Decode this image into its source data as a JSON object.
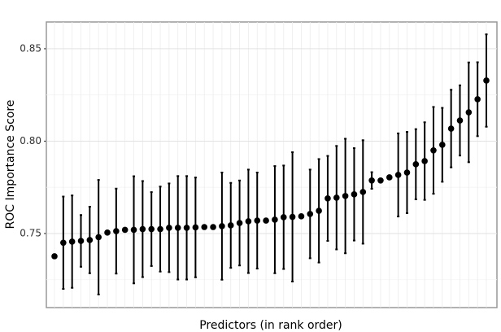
{
  "chart_data": {
    "type": "errorbar-dot",
    "x_label": "Predictors (in rank order)",
    "y_label": "ROC Importance Score",
    "categories": [
      null,
      null,
      null,
      null,
      null,
      null,
      null,
      null,
      null,
      null,
      null,
      null,
      null,
      null,
      null,
      null,
      null,
      null,
      null,
      null,
      null,
      null,
      null,
      null,
      null,
      null,
      null,
      null,
      null,
      null,
      null,
      null,
      null,
      null,
      null,
      null,
      null,
      null,
      null,
      null,
      null,
      null,
      null,
      null,
      null,
      null,
      null,
      null,
      null,
      null
    ],
    "values": [
      0.7377,
      0.745,
      0.7456,
      0.746,
      0.7465,
      0.748,
      0.7505,
      0.7513,
      0.752,
      0.752,
      0.7524,
      0.7524,
      0.7524,
      0.7531,
      0.7531,
      0.7531,
      0.7533,
      0.7535,
      0.7535,
      0.754,
      0.7544,
      0.7557,
      0.7566,
      0.757,
      0.757,
      0.7575,
      0.7588,
      0.759,
      0.7593,
      0.7606,
      0.7623,
      0.769,
      0.7694,
      0.7703,
      0.7712,
      0.7725,
      0.7787,
      0.7787,
      0.7804,
      0.7817,
      0.783,
      0.7875,
      0.7892,
      0.795,
      0.798,
      0.8068,
      0.8112,
      0.8156,
      0.8227,
      0.8328
    ],
    "errors": [
      null,
      0.025,
      0.025,
      0.014,
      0.018,
      0.031,
      null,
      0.023,
      null,
      0.029,
      0.026,
      0.02,
      0.023,
      0.024,
      0.028,
      0.028,
      0.027,
      null,
      null,
      0.029,
      0.023,
      0.023,
      0.028,
      0.026,
      null,
      0.029,
      0.028,
      0.035,
      null,
      0.024,
      0.028,
      0.023,
      0.028,
      0.031,
      0.025,
      0.028,
      0.0045,
      null,
      null,
      0.0225,
      0.022,
      0.019,
      0.021,
      0.0235,
      0.02,
      0.021,
      0.019,
      0.027,
      0.02,
      0.025
    ],
    "color": "#000000",
    "ylim": [
      0.7099,
      0.8645
    ],
    "yticks": [
      0.75,
      {
        "value": 0.8,
        "label": "0.80"
      },
      0.85
    ],
    "yminor": [
      0.725,
      0.775,
      0.825
    ],
    "grid": true
  }
}
